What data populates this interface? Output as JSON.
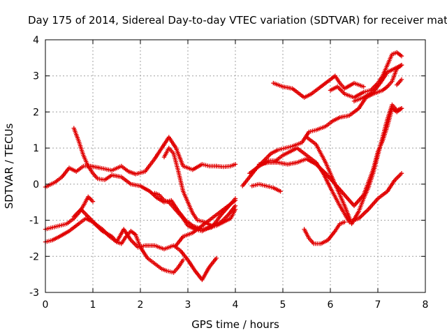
{
  "chart_data": {
    "type": "scatter",
    "title": "Day 175 of 2014, Sidereal Day-to-day VTEC variation (SDTVAR) for receiver mate",
    "xlabel": "GPS time / hours",
    "ylabel": "SDTVAR / TECUs",
    "xlim": [
      0,
      8
    ],
    "ylim": [
      -3,
      4
    ],
    "x_ticks": [
      "0",
      "1",
      "2",
      "3",
      "4",
      "5",
      "6",
      "7",
      "8"
    ],
    "y_ticks": [
      "-3",
      "-2",
      "-1",
      "0",
      "1",
      "2",
      "3",
      "4"
    ],
    "grid": true,
    "marker": "+",
    "color": "#e00000",
    "series": [
      {
        "name": "s1",
        "x": [
          0,
          0.2,
          0.35,
          0.5,
          0.65,
          0.8,
          0.95,
          1.15,
          1.4,
          1.6,
          1.75,
          1.9,
          2.1,
          2.3,
          2.45,
          2.6,
          2.75,
          2.9,
          3.1,
          3.3,
          3.45,
          3.6
        ],
        "y": [
          -0.08,
          0.05,
          0.2,
          0.45,
          0.35,
          0.5,
          0.5,
          0.45,
          0.38,
          0.5,
          0.35,
          0.28,
          0.35,
          0.7,
          1.0,
          1.3,
          1.0,
          0.5,
          0.4,
          0.55,
          0.5,
          0.5
        ]
      },
      {
        "name": "s2",
        "x": [
          3.6,
          3.75,
          3.9,
          4.0
        ],
        "y": [
          0.5,
          0.48,
          0.5,
          0.55
        ]
      },
      {
        "name": "s3",
        "x": [
          0.6,
          0.7,
          0.8,
          0.9,
          1.0,
          1.1,
          1.25,
          1.4,
          1.6,
          1.8,
          2.0,
          2.2,
          2.35,
          2.5,
          2.65,
          2.8,
          2.95,
          3.1,
          3.3,
          3.5,
          3.7,
          3.9,
          4.0
        ],
        "y": [
          1.55,
          1.2,
          0.8,
          0.5,
          0.3,
          0.15,
          0.12,
          0.25,
          0.2,
          0.0,
          -0.05,
          -0.2,
          -0.38,
          -0.5,
          -0.45,
          -0.75,
          -1.0,
          -1.15,
          -1.25,
          -1.2,
          -0.85,
          -0.55,
          -0.4
        ]
      },
      {
        "name": "s4",
        "x": [
          0,
          0.15,
          0.3,
          0.45,
          0.6,
          0.7,
          0.8,
          0.9,
          1.0
        ],
        "y": [
          -1.25,
          -1.2,
          -1.15,
          -1.1,
          -0.95,
          -0.8,
          -0.6,
          -0.35,
          -0.48
        ]
      },
      {
        "name": "s5",
        "x": [
          0,
          0.15,
          0.3,
          0.5,
          0.7,
          0.85,
          1.0,
          1.2,
          1.4,
          1.5,
          1.6,
          1.7,
          1.8,
          1.9,
          2.0,
          2.15,
          2.3,
          2.45,
          2.55,
          2.7,
          2.8,
          2.9
        ],
        "y": [
          -1.6,
          -1.55,
          -1.45,
          -1.3,
          -1.1,
          -0.95,
          -1.05,
          -1.3,
          -1.45,
          -1.6,
          -1.65,
          -1.45,
          -1.3,
          -1.4,
          -1.75,
          -2.05,
          -2.2,
          -2.35,
          -2.4,
          -2.45,
          -2.3,
          -2.1
        ]
      },
      {
        "name": "s6",
        "x": [
          0.6,
          0.75,
          0.9,
          1.05,
          1.2,
          1.35,
          1.5,
          1.65,
          1.8,
          1.95,
          2.1,
          2.3,
          2.5,
          2.7,
          2.85,
          3.0,
          3.15,
          3.3,
          3.45,
          3.6
        ],
        "y": [
          -0.9,
          -0.7,
          -0.9,
          -1.1,
          -1.25,
          -1.45,
          -1.6,
          -1.25,
          -1.55,
          -1.75,
          -1.7,
          -1.7,
          -1.8,
          -1.7,
          -1.85,
          -2.1,
          -2.4,
          -2.65,
          -2.3,
          -2.05
        ]
      },
      {
        "name": "s7",
        "x": [
          2.3,
          2.4,
          2.5,
          2.6,
          2.7,
          2.8,
          2.9,
          3.0,
          3.15,
          3.3,
          3.45,
          3.6,
          3.75,
          3.9,
          4.0
        ],
        "y": [
          -0.25,
          -0.3,
          -0.45,
          -0.5,
          -0.65,
          -0.8,
          -0.95,
          -1.15,
          -1.25,
          -1.3,
          -1.2,
          -1.15,
          -1.05,
          -0.95,
          -0.7
        ]
      },
      {
        "name": "s8",
        "x": [
          2.5,
          2.6,
          2.7,
          2.8,
          2.9,
          3.0,
          3.1,
          3.2,
          3.35,
          3.5,
          3.7,
          3.85,
          4.0
        ],
        "y": [
          0.75,
          1.0,
          0.85,
          0.35,
          -0.2,
          -0.5,
          -0.8,
          -1.0,
          -1.05,
          -1.15,
          -1.05,
          -0.85,
          -0.6
        ]
      },
      {
        "name": "s9",
        "x": [
          2.75,
          2.9,
          3.1,
          3.3,
          3.5,
          3.7,
          3.9,
          4.0
        ],
        "y": [
          -1.7,
          -1.45,
          -1.35,
          -1.15,
          -0.95,
          -0.75,
          -0.55,
          -0.45
        ]
      },
      {
        "name": "s10",
        "x": [
          4.8,
          5.0,
          5.2,
          5.45,
          5.6,
          5.8,
          6.0,
          6.1,
          6.2,
          6.3,
          6.5,
          6.7
        ],
        "y": [
          2.8,
          2.7,
          2.65,
          2.4,
          2.5,
          2.7,
          2.9,
          3.0,
          2.8,
          2.65,
          2.8,
          2.7
        ]
      },
      {
        "name": "s11",
        "x": [
          6.0,
          6.15,
          6.3,
          6.5,
          6.7,
          6.85,
          7.0,
          7.1,
          7.2,
          7.3,
          7.4,
          7.5
        ],
        "y": [
          2.6,
          2.7,
          2.5,
          2.4,
          2.55,
          2.6,
          2.8,
          3.0,
          3.3,
          3.6,
          3.65,
          3.55
        ]
      },
      {
        "name": "s12",
        "x": [
          6.5,
          6.7,
          6.9,
          7.05,
          7.2,
          7.35,
          7.5
        ],
        "y": [
          2.3,
          2.4,
          2.55,
          2.8,
          3.1,
          3.2,
          3.3
        ]
      },
      {
        "name": "s13",
        "x": [
          7.4,
          7.5
        ],
        "y": [
          2.75,
          2.9
        ]
      },
      {
        "name": "s14",
        "x": [
          4.15,
          4.3,
          4.45,
          4.6,
          4.75,
          4.9,
          5.05,
          5.2,
          5.4,
          5.55,
          5.7,
          5.9,
          6.05,
          6.2,
          6.4,
          6.6,
          6.75,
          6.9,
          7.0,
          7.1,
          7.2,
          7.3,
          7.4,
          7.5
        ],
        "y": [
          -0.05,
          0.2,
          0.45,
          0.65,
          0.85,
          0.95,
          1.0,
          1.05,
          1.15,
          1.45,
          1.5,
          1.6,
          1.75,
          1.85,
          1.9,
          2.1,
          2.4,
          2.5,
          2.55,
          2.6,
          2.7,
          2.85,
          3.2,
          3.3
        ]
      },
      {
        "name": "s15",
        "x": [
          4.3,
          4.5,
          4.7,
          4.85,
          5.0,
          5.15,
          5.3,
          5.5,
          5.7,
          5.85,
          6.0,
          6.2,
          6.4,
          6.6,
          6.8,
          7.0,
          7.2,
          7.35,
          7.5
        ],
        "y": [
          0.3,
          0.5,
          0.65,
          0.65,
          0.8,
          0.9,
          1.0,
          0.8,
          0.6,
          0.3,
          -0.1,
          -0.6,
          -1.05,
          -0.95,
          -0.7,
          -0.4,
          -0.2,
          0.1,
          0.3
        ]
      },
      {
        "name": "s16",
        "x": [
          4.5,
          4.7,
          4.9,
          5.1,
          5.3,
          5.5,
          5.7,
          5.9,
          6.1,
          6.3,
          6.5,
          6.7,
          6.9,
          7.0,
          7.1,
          7.2,
          7.3,
          7.4,
          7.5
        ],
        "y": [
          0.55,
          0.6,
          0.6,
          0.55,
          0.6,
          0.7,
          0.55,
          0.3,
          0.0,
          -0.3,
          -0.6,
          -0.3,
          0.4,
          0.9,
          1.2,
          1.6,
          2.1,
          2.0,
          2.1
        ]
      },
      {
        "name": "s17",
        "x": [
          4.35,
          4.5,
          4.65,
          4.8,
          4.95
        ],
        "y": [
          -0.05,
          0.0,
          -0.05,
          -0.1,
          -0.2
        ]
      },
      {
        "name": "s18",
        "x": [
          5.45,
          5.55,
          5.65,
          5.8,
          5.95,
          6.1,
          6.2,
          6.3
        ],
        "y": [
          -1.25,
          -1.5,
          -1.65,
          -1.65,
          -1.55,
          -1.3,
          -1.1,
          -1.05
        ]
      },
      {
        "name": "s19",
        "x": [
          5.5,
          5.7,
          5.9,
          6.1,
          6.3,
          6.45,
          6.6,
          6.7,
          6.8,
          6.9,
          7.0,
          7.1,
          7.2,
          7.3,
          7.4,
          7.5
        ],
        "y": [
          1.3,
          1.1,
          0.6,
          0.0,
          -0.6,
          -1.1,
          -0.75,
          -0.4,
          -0.1,
          0.3,
          0.8,
          1.3,
          1.8,
          2.2,
          2.05,
          2.1
        ]
      }
    ]
  }
}
